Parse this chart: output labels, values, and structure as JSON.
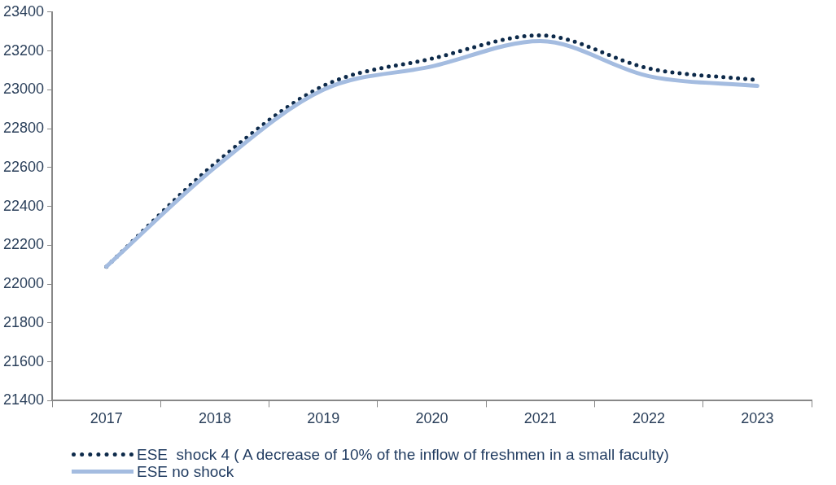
{
  "chart_data": {
    "type": "line",
    "categories": [
      "2017",
      "2018",
      "2019",
      "2020",
      "2021",
      "2022",
      "2023"
    ],
    "series": [
      {
        "name": "ESE  shock 4 ( A decrease of 10% of the inflow of freshmen in a small faculty)",
        "color": "#0d2a4a",
        "line_style": "dotted",
        "values": [
          22090,
          22620,
          23020,
          23160,
          23280,
          23110,
          23050
        ]
      },
      {
        "name": "ESE no shock",
        "color": "#a4bce0",
        "line_style": "solid",
        "values": [
          22090,
          22600,
          23000,
          23120,
          23250,
          23070,
          23020
        ]
      }
    ],
    "ylim": [
      21400,
      23400
    ],
    "yticks": [
      21400,
      21600,
      21800,
      22000,
      22200,
      22400,
      22600,
      22800,
      23000,
      23200,
      23400
    ],
    "grid": false,
    "legend": "bottom",
    "marker": "none"
  }
}
